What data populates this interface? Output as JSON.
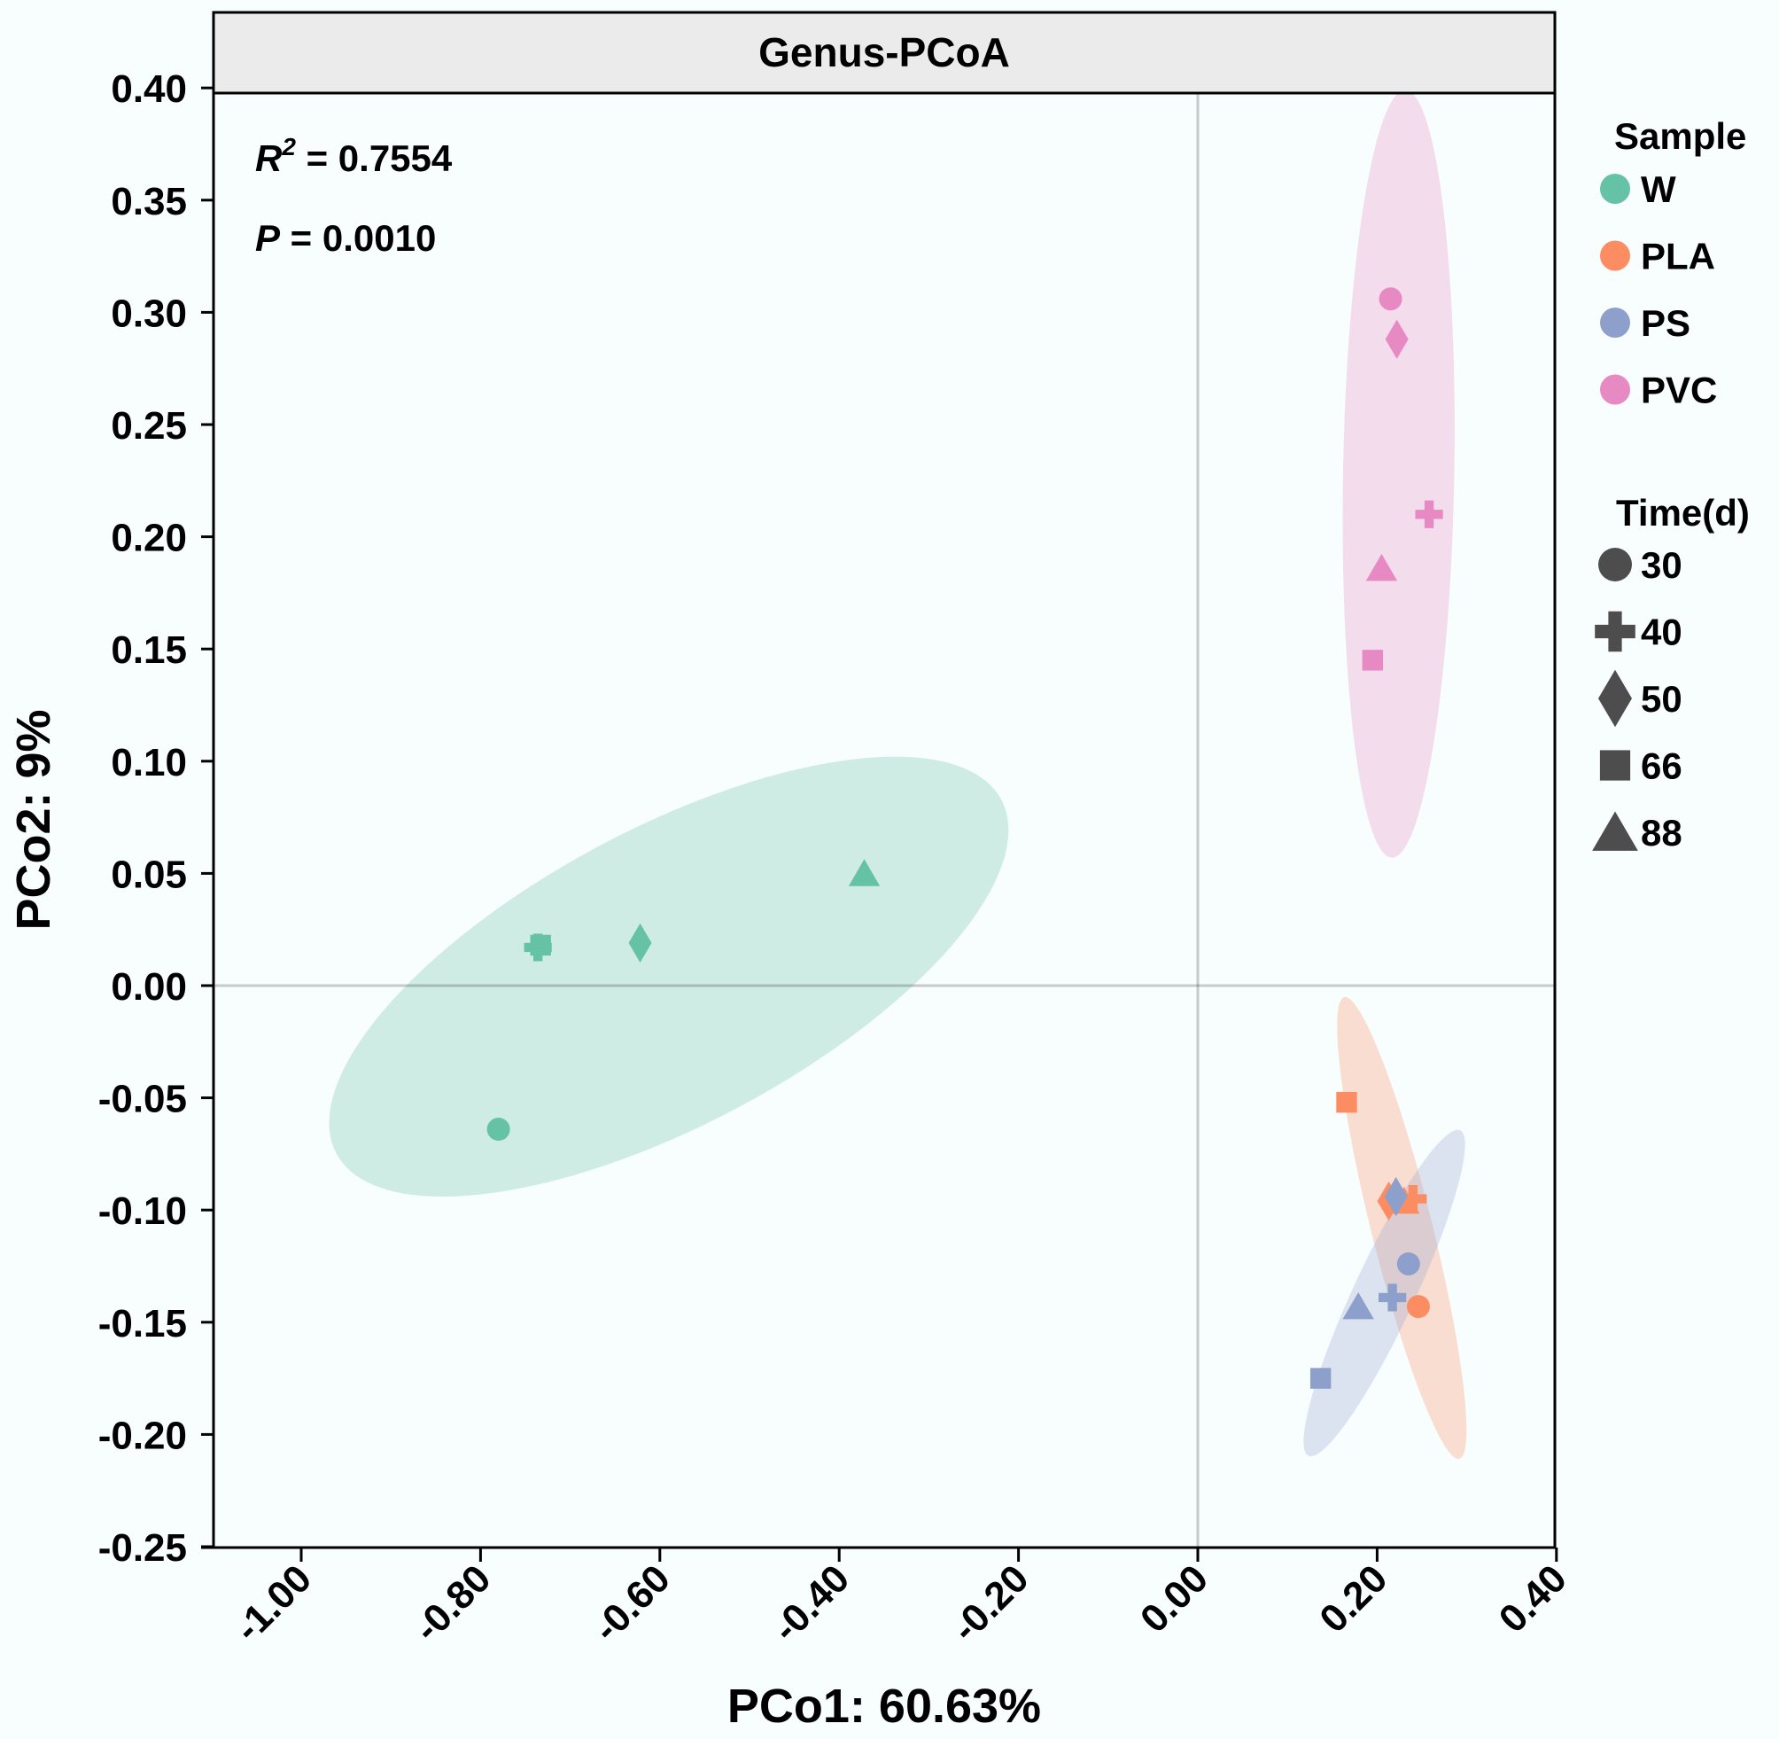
{
  "chart_data": {
    "type": "scatter",
    "title": "Genus-PCoA",
    "xlabel": "PCo1: 60.63%",
    "ylabel": "PCo2: 9%",
    "xlim": [
      -1.1,
      0.4
    ],
    "ylim": [
      -0.25,
      0.4
    ],
    "xticks": [
      -1.0,
      -0.8,
      -0.6,
      -0.4,
      -0.2,
      0.0,
      0.2,
      0.4
    ],
    "xtick_labels": [
      "-1.00",
      "-0.80",
      "-0.60",
      "-0.40",
      "-0.20",
      "0.00",
      "0.20",
      "0.40"
    ],
    "yticks": [
      0.4,
      0.35,
      0.3,
      0.25,
      0.2,
      0.15,
      0.1,
      0.05,
      0.0,
      -0.05,
      -0.1,
      -0.15,
      -0.2,
      -0.25
    ],
    "ytick_labels": [
      "0.40",
      "0.35",
      "0.30",
      "0.25",
      "0.20",
      "0.15",
      "0.10",
      "0.05",
      "0.00",
      "-0.05",
      "-0.10",
      "-0.15",
      "-0.20",
      "-0.25"
    ],
    "reference_lines": {
      "x": 0.0,
      "y": 0.0
    },
    "grid": false,
    "annotations": {
      "r2_label": "R",
      "r2_sup": "2",
      "r2_value": " = 0.7554",
      "p_label": "P",
      "p_value": " = 0.0010"
    },
    "legend": {
      "placement": "right",
      "sample_title": "Sample",
      "time_title": "Time(d)",
      "samples": [
        {
          "name": "W",
          "color": "#66c2a5"
        },
        {
          "name": "PLA",
          "color": "#fc8d62"
        },
        {
          "name": "PS",
          "color": "#8da0cb"
        },
        {
          "name": "PVC",
          "color": "#e78ac3"
        }
      ],
      "times": [
        {
          "name": "30",
          "shape": "circle"
        },
        {
          "name": "40",
          "shape": "plus"
        },
        {
          "name": "50",
          "shape": "diamond"
        },
        {
          "name": "66",
          "shape": "square"
        },
        {
          "name": "88",
          "shape": "triangle"
        }
      ],
      "time_color": "#4d4d4d"
    },
    "series": [
      {
        "name": "W",
        "color": "#66c2a5",
        "ellipse": {
          "cx": -0.59,
          "cy": 0.004,
          "rx": 0.42,
          "ry": 0.066,
          "angle_deg": 28
        },
        "points": [
          {
            "time": "30",
            "x": -0.78,
            "y": -0.064
          },
          {
            "time": "66",
            "x": -0.733,
            "y": 0.018
          },
          {
            "time": "40",
            "x": -0.736,
            "y": 0.017
          },
          {
            "time": "50",
            "x": -0.622,
            "y": 0.019
          },
          {
            "time": "88",
            "x": -0.372,
            "y": 0.05
          }
        ]
      },
      {
        "name": "PVC",
        "color": "#e78ac3",
        "ellipse": {
          "cx": 0.224,
          "cy": 0.228,
          "rx": 0.062,
          "ry": 0.171,
          "angle_deg": -1
        },
        "points": [
          {
            "time": "30",
            "x": 0.215,
            "y": 0.306
          },
          {
            "time": "50",
            "x": 0.222,
            "y": 0.288
          },
          {
            "time": "40",
            "x": 0.258,
            "y": 0.21
          },
          {
            "time": "88",
            "x": 0.205,
            "y": 0.186
          },
          {
            "time": "66",
            "x": 0.195,
            "y": 0.145
          }
        ]
      },
      {
        "name": "PLA",
        "color": "#fc8d62",
        "ellipse": {
          "cx": 0.2275,
          "cy": -0.108,
          "rx": 0.034,
          "ry": 0.106,
          "angle_deg": 14
        },
        "points": [
          {
            "time": "66",
            "x": 0.166,
            "y": -0.052
          },
          {
            "time": "88",
            "x": 0.23,
            "y": -0.096
          },
          {
            "time": "40",
            "x": 0.24,
            "y": -0.095
          },
          {
            "time": "50",
            "x": 0.213,
            "y": -0.096
          },
          {
            "time": "30",
            "x": 0.246,
            "y": -0.143
          }
        ]
      },
      {
        "name": "PS",
        "color": "#8da0cb",
        "ellipse": {
          "cx": 0.208,
          "cy": -0.137,
          "rx": 0.034,
          "ry": 0.08,
          "angle_deg": -25
        },
        "points": [
          {
            "time": "50",
            "x": 0.221,
            "y": -0.094
          },
          {
            "time": "30",
            "x": 0.235,
            "y": -0.124
          },
          {
            "time": "40",
            "x": 0.217,
            "y": -0.139
          },
          {
            "time": "88",
            "x": 0.179,
            "y": -0.143
          },
          {
            "time": "66",
            "x": 0.137,
            "y": -0.175
          }
        ]
      }
    ]
  }
}
